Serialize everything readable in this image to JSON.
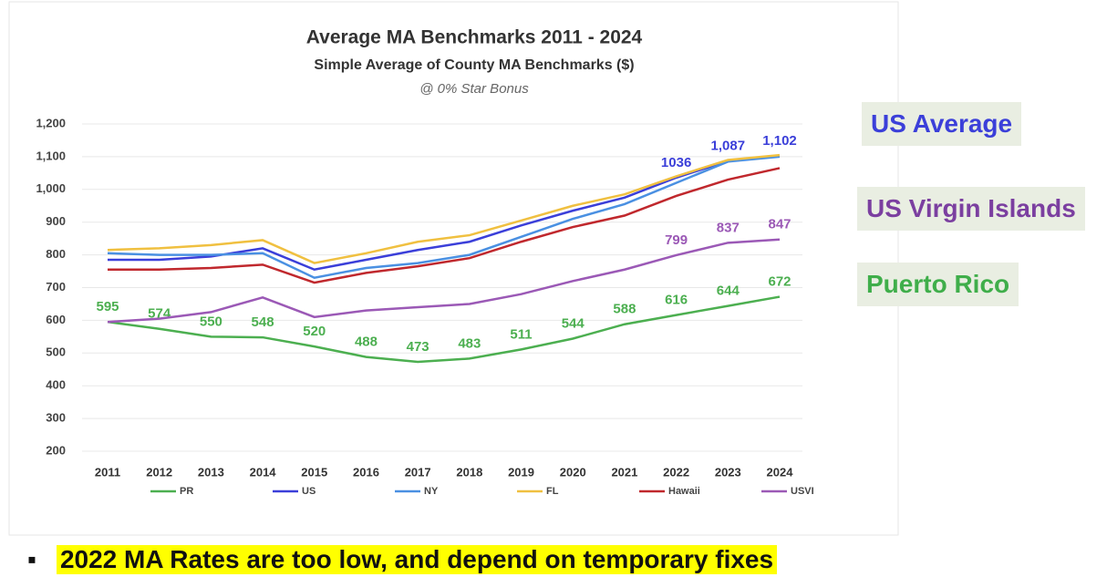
{
  "chart_data": {
    "type": "line",
    "title": "Average MA Benchmarks 2011 - 2024",
    "subtitle": "Simple Average of County MA Benchmarks ($)",
    "note": "@ 0% Star Bonus",
    "categories": [
      "2011",
      "2012",
      "2013",
      "2014",
      "2015",
      "2016",
      "2017",
      "2018",
      "2019",
      "2020",
      "2021",
      "2022",
      "2023",
      "2024"
    ],
    "ylim": [
      200,
      1200
    ],
    "yticks": [
      200,
      300,
      400,
      500,
      600,
      700,
      800,
      900,
      {
        "value": 1000,
        "label": "1,000"
      },
      {
        "value": 1100,
        "label": "1,100"
      },
      {
        "value": 1200,
        "label": "1,200"
      }
    ],
    "grid": true,
    "series": [
      {
        "name": "PR",
        "color": "#4caf50",
        "values": [
          595,
          574,
          550,
          548,
          520,
          488,
          473,
          483,
          511,
          544,
          588,
          616,
          644,
          672
        ],
        "value_labels": [
          "595",
          "574",
          "550",
          "548",
          "520",
          "488",
          "473",
          "483",
          "511",
          "544",
          "588",
          "616",
          "644",
          "672"
        ]
      },
      {
        "name": "US",
        "color": "#3b3fd9",
        "values": [
          785,
          785,
          795,
          820,
          755,
          785,
          815,
          840,
          890,
          935,
          975,
          1036,
          1087,
          1102
        ],
        "value_labels": [
          null,
          null,
          null,
          null,
          null,
          null,
          null,
          null,
          null,
          null,
          null,
          "1036",
          "1,087",
          "1,102"
        ]
      },
      {
        "name": "NY",
        "color": "#4a90e2",
        "values": [
          805,
          800,
          800,
          805,
          730,
          760,
          775,
          800,
          855,
          910,
          955,
          1020,
          1085,
          1100
        ]
      },
      {
        "name": "FL",
        "color": "#f0c040",
        "values": [
          815,
          820,
          830,
          845,
          775,
          805,
          840,
          860,
          905,
          950,
          985,
          1040,
          1090,
          1105
        ]
      },
      {
        "name": "Hawaii",
        "color": "#c0282d",
        "values": [
          755,
          755,
          760,
          770,
          715,
          745,
          765,
          790,
          840,
          885,
          920,
          980,
          1030,
          1065
        ]
      },
      {
        "name": "USVI",
        "color": "#9b59b6",
        "values": [
          595,
          605,
          625,
          670,
          610,
          630,
          640,
          650,
          680,
          720,
          755,
          799,
          837,
          847
        ],
        "value_labels": [
          null,
          null,
          null,
          null,
          null,
          null,
          null,
          null,
          null,
          null,
          null,
          "799",
          "837",
          "847"
        ]
      }
    ]
  },
  "callouts": [
    {
      "text": "US Average",
      "color": "#3b3fd9"
    },
    {
      "text": "US Virgin Islands",
      "color": "#7b3fa0"
    },
    {
      "text": "Puerto Rico",
      "color": "#3fae4a"
    }
  ],
  "bullet": "2022 MA Rates are too low, and depend on temporary fixes"
}
